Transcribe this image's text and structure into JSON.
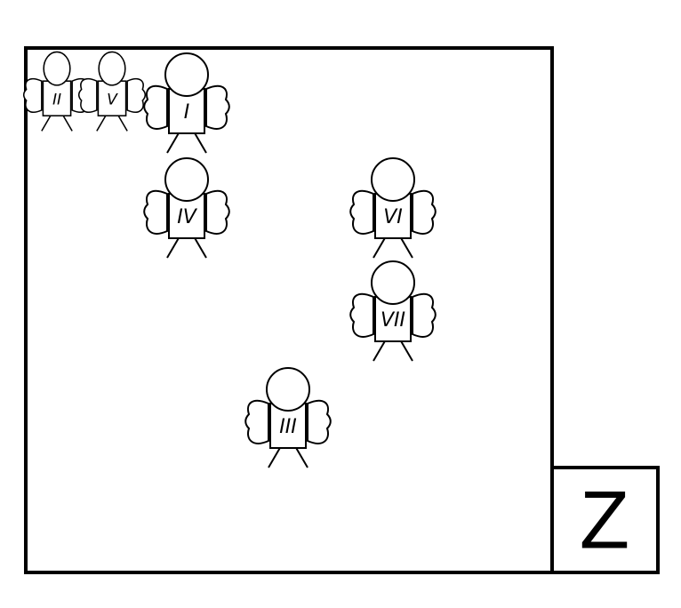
{
  "diagram": {
    "figures": [
      {
        "id": "fig-ii",
        "label": "II",
        "head": "oval"
      },
      {
        "id": "fig-v",
        "label": "V",
        "head": "oval"
      },
      {
        "id": "fig-i",
        "label": "I",
        "head": "circle"
      },
      {
        "id": "fig-iv",
        "label": "IV",
        "head": "circle"
      },
      {
        "id": "fig-vi",
        "label": "VI",
        "head": "circle"
      },
      {
        "id": "fig-vii",
        "label": "VII",
        "head": "circle"
      },
      {
        "id": "fig-iii",
        "label": "III",
        "head": "circle"
      }
    ],
    "side_box": {
      "label": "Z"
    }
  },
  "colors": {
    "stroke": "#000000",
    "background": "#ffffff"
  }
}
